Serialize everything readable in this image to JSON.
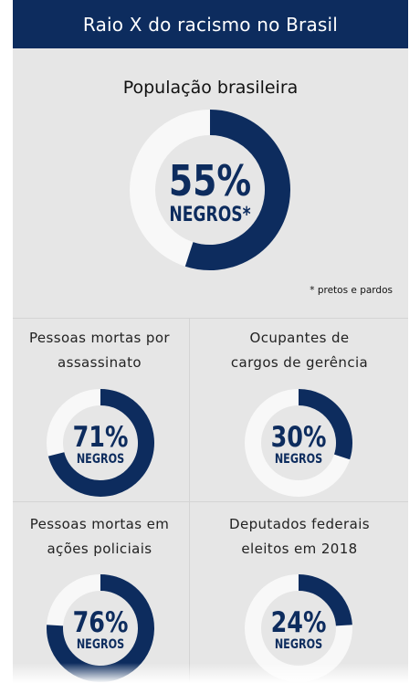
{
  "header": {
    "title": "Raio X do racismo no Brasil"
  },
  "colors": {
    "navy": "#0d2c5e",
    "track": "#f8f8f8",
    "panel": "#e6e6e6"
  },
  "main": {
    "title": "População brasileira",
    "value_label": "55%",
    "sub_label": "NEGROS*",
    "note": "* pretos e pardos"
  },
  "cells": [
    {
      "title_line1": "Pessoas mortas por",
      "title_line2": "assassinato",
      "value_label": "71%",
      "sub_label": "NEGROS"
    },
    {
      "title_line1": "Ocupantes de",
      "title_line2": "cargos de gerência",
      "value_label": "30%",
      "sub_label": "NEGROS"
    },
    {
      "title_line1": "Pessoas mortas em",
      "title_line2": "ações policiais",
      "value_label": "76%",
      "sub_label": "NEGROS"
    },
    {
      "title_line1": "Deputados federais",
      "title_line2": "eleitos em 2018",
      "value_label": "24%",
      "sub_label": "NEGROS"
    }
  ],
  "chart_data": [
    {
      "type": "pie",
      "title": "População brasileira",
      "values": [
        55,
        45
      ],
      "labels": [
        "NEGROS*",
        ""
      ]
    },
    {
      "type": "pie",
      "title": "Pessoas mortas por assassinato",
      "values": [
        71,
        29
      ],
      "labels": [
        "NEGROS",
        ""
      ]
    },
    {
      "type": "pie",
      "title": "Ocupantes de cargos de gerência",
      "values": [
        30,
        70
      ],
      "labels": [
        "NEGROS",
        ""
      ]
    },
    {
      "type": "pie",
      "title": "Pessoas mortas em ações policiais",
      "values": [
        76,
        24
      ],
      "labels": [
        "NEGROS",
        ""
      ]
    },
    {
      "type": "pie",
      "title": "Deputados federais eleitos em 2018",
      "values": [
        24,
        76
      ],
      "labels": [
        "NEGROS",
        ""
      ]
    }
  ]
}
